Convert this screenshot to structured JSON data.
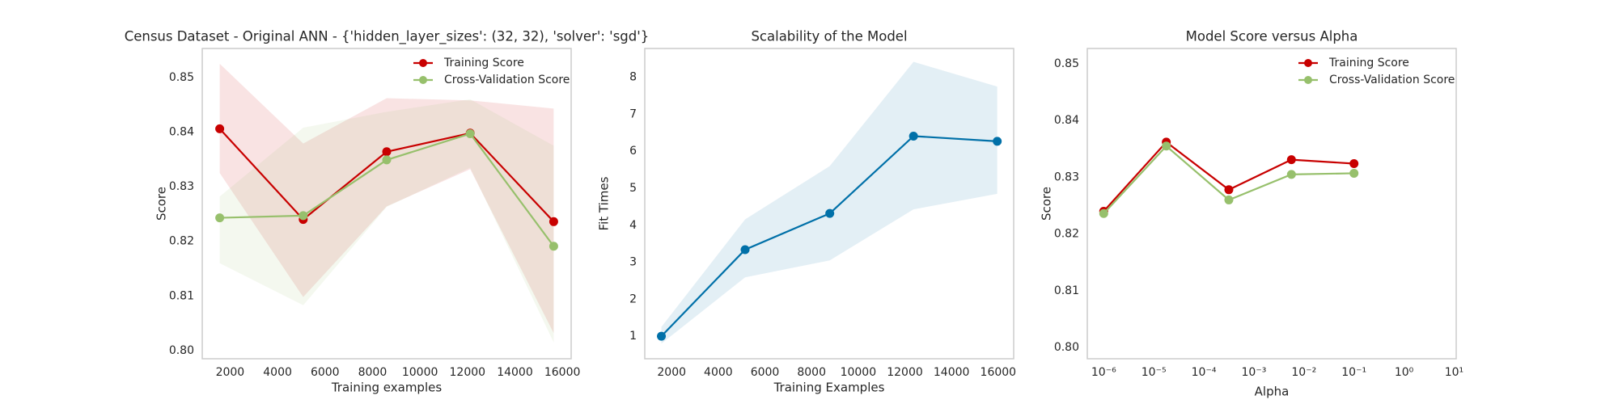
{
  "chart_data": [
    {
      "type": "line",
      "title": "Census Dataset - Original ANN - {'hidden_layer_sizes': (32, 32), 'solver': 'sgd'}",
      "xlabel": "Training examples",
      "ylabel": "Score",
      "x": [
        1563,
        5081,
        8598,
        12116,
        15634
      ],
      "xlim": [
        827,
        16370
      ],
      "xticks": [
        2000,
        4000,
        6000,
        8000,
        10000,
        12000,
        14000,
        16000
      ],
      "ylim": [
        0.7985,
        0.8553
      ],
      "yticks": [
        {
          "value": 0.8,
          "label": "0.80"
        },
        0.81,
        0.82,
        0.83,
        0.84,
        0.85
      ],
      "legend": "upper right",
      "series": [
        {
          "name": "Training Score",
          "color": "#c80000",
          "values": [
            0.8406,
            0.824,
            0.8364,
            0.8398,
            0.8236
          ],
          "upper": [
            0.8525,
            0.8379,
            0.8462,
            0.8458,
            0.8443
          ],
          "lower": [
            0.8325,
            0.8098,
            0.8264,
            0.8332,
            0.8032
          ]
        },
        {
          "name": "Cross-Validation Score",
          "color": "#97c06c",
          "values": [
            0.8243,
            0.8247,
            0.8349,
            0.8397,
            0.8191
          ],
          "upper": [
            0.8282,
            0.8408,
            0.8437,
            0.846,
            0.8375
          ],
          "lower": [
            0.816,
            0.8083,
            0.8263,
            0.8335,
            0.8015
          ]
        }
      ]
    },
    {
      "type": "line",
      "title": "Scalability of the Model",
      "xlabel": "Training Examples",
      "ylabel": "Fit Times",
      "x": [
        1560,
        5150,
        8780,
        12370,
        15960
      ],
      "xlim": [
        848,
        16665
      ],
      "xticks": [
        2000,
        4000,
        6000,
        8000,
        10000,
        12000,
        14000,
        16000
      ],
      "ylim": [
        0.39,
        8.78
      ],
      "yticks": [
        1,
        2,
        3,
        4,
        5,
        6,
        7,
        8
      ],
      "series": [
        {
          "color": "#0070a8",
          "values": [
            1.0,
            3.34,
            4.32,
            6.41,
            6.27
          ],
          "upper": [
            1.25,
            4.16,
            5.6,
            8.42,
            7.75
          ],
          "lower": [
            0.8,
            2.59,
            3.05,
            4.43,
            4.85
          ]
        }
      ]
    },
    {
      "type": "line",
      "title": "Model Score versus Alpha",
      "xlabel": "Alpha",
      "ylabel": "Score",
      "xscale": "log",
      "x": [
        1e-06,
        1.78e-05,
        0.000316,
        0.00562,
        0.1
      ],
      "xlim": [
        4.7e-07,
        11
      ],
      "xticks": [
        {
          "value": 1e-06,
          "label": "10⁻⁶"
        },
        {
          "value": 1e-05,
          "label": "10⁻⁵"
        },
        {
          "value": 0.0001,
          "label": "10⁻⁴"
        },
        {
          "value": 0.001,
          "label": "10⁻³"
        },
        {
          "value": 0.01,
          "label": "10⁻²"
        },
        {
          "value": 0.1,
          "label": "10⁻¹"
        },
        {
          "value": 1,
          "label": "10⁰"
        },
        {
          "value": 10,
          "label": "10¹"
        }
      ],
      "ylim": [
        0.798,
        0.8527
      ],
      "yticks": [
        {
          "value": 0.8,
          "label": "0.80"
        },
        0.81,
        0.82,
        0.83,
        0.84,
        0.85
      ],
      "legend": "upper right",
      "series": [
        {
          "name": "Training Score",
          "color": "#c80000",
          "values": [
            0.824,
            0.8362,
            0.8278,
            0.8331,
            0.8324
          ]
        },
        {
          "name": "Cross-Validation Score",
          "color": "#97c06c",
          "values": [
            0.8236,
            0.8355,
            0.826,
            0.8305,
            0.8307
          ]
        }
      ]
    }
  ]
}
